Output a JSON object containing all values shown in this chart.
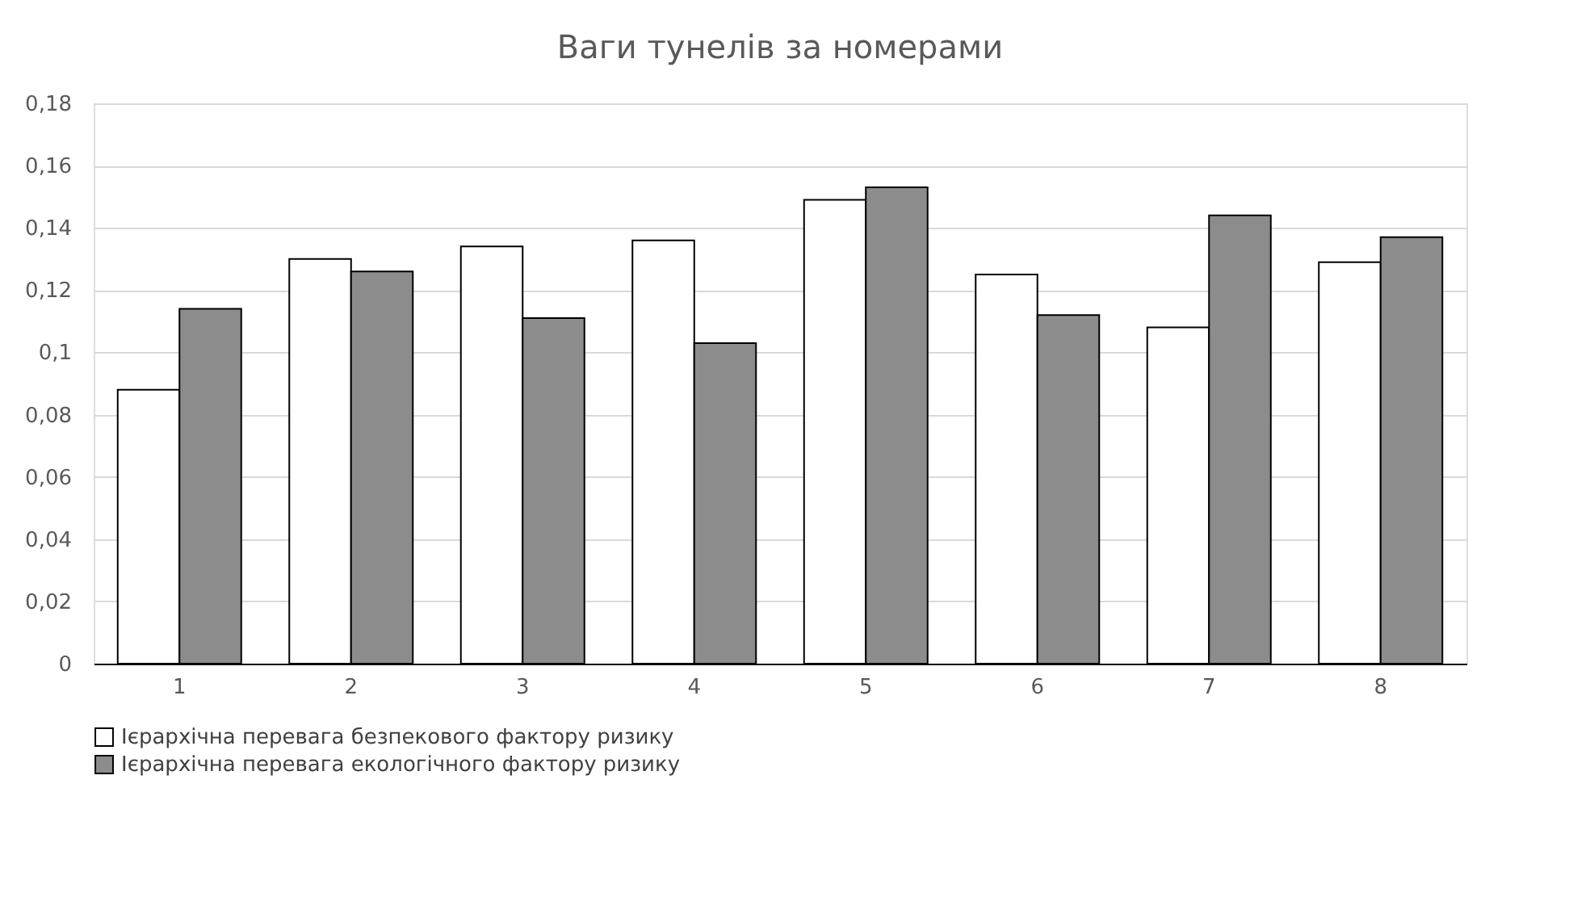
{
  "chart_data": {
    "type": "bar",
    "title": "Ваги тунелів за номерами",
    "categories": [
      "1",
      "2",
      "3",
      "4",
      "5",
      "6",
      "7",
      "8"
    ],
    "series": [
      {
        "name": "Ієрархічна перевага безпекового фактору ризику",
        "color": "#ffffff",
        "values": [
          0.088,
          0.13,
          0.134,
          0.136,
          0.149,
          0.125,
          0.108,
          0.129
        ]
      },
      {
        "name": "Ієрархічна перевага екологічного фактору ризику",
        "color": "#8c8c8c",
        "values": [
          0.114,
          0.126,
          0.111,
          0.103,
          0.153,
          0.112,
          0.144,
          0.137
        ]
      }
    ],
    "ylim": [
      0,
      0.18
    ],
    "yticks": [
      0,
      {
        "value": 0.02,
        "label": "0,02"
      },
      {
        "value": 0.04,
        "label": "0,04"
      },
      {
        "value": 0.06,
        "label": "0,06"
      },
      {
        "value": 0.08,
        "label": "0,08"
      },
      {
        "value": 0.1,
        "label": "0,1"
      },
      {
        "value": 0.12,
        "label": "0,12"
      },
      {
        "value": 0.14,
        "label": "0,14"
      },
      {
        "value": 0.16,
        "label": "0,16"
      },
      {
        "value": 0.18,
        "label": "0,18"
      }
    ],
    "grid": "y",
    "legend": "bottom"
  }
}
